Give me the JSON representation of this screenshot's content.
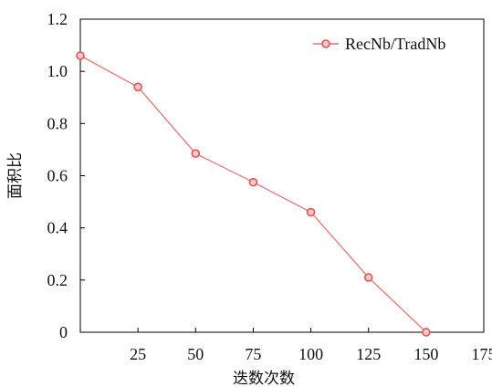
{
  "chart_data": {
    "type": "line",
    "xlabel": "迭数次数",
    "ylabel": "面积比",
    "xlim": [
      0,
      175
    ],
    "ylim": [
      0,
      1.2
    ],
    "x_ticks": [
      25,
      50,
      75,
      100,
      125,
      150,
      175
    ],
    "y_ticks": [
      0,
      0.2,
      0.4,
      0.6,
      0.8,
      1.0,
      1.2
    ],
    "x_tick_labels": [
      "25",
      "50",
      "75",
      "100",
      "125",
      "150",
      "175"
    ],
    "y_tick_labels": [
      "0",
      "0.2",
      "0.4",
      "0.6",
      "0.8",
      "1.0",
      "1.2"
    ],
    "grid": false,
    "legend_position": "top-right",
    "series": [
      {
        "name": "RecNb/TradNb",
        "color": "#e05555",
        "marker": "open-circle",
        "x": [
          0,
          25,
          50,
          75,
          100,
          125,
          150
        ],
        "y": [
          1.06,
          0.94,
          0.685,
          0.575,
          0.46,
          0.21,
          0.0
        ]
      }
    ]
  }
}
